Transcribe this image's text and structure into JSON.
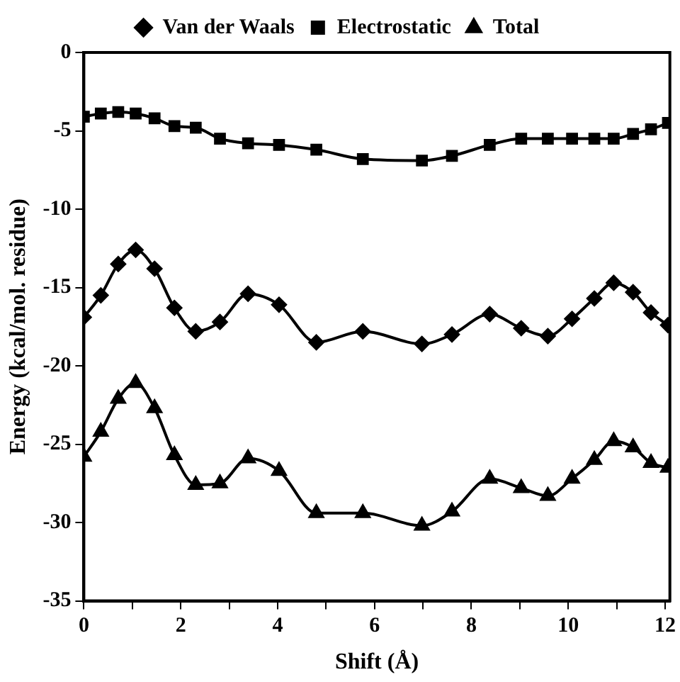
{
  "chart_data": {
    "type": "line",
    "xlabel": "Shift (Å)",
    "ylabel": "Energy (kcal/mol. residue)",
    "x": [
      0,
      0.35,
      0.71,
      1.07,
      1.46,
      1.87,
      2.31,
      2.81,
      3.39,
      4.03,
      4.8,
      5.76,
      6.98,
      7.6,
      8.38,
      9.03,
      9.58,
      10.08,
      10.54,
      10.94,
      11.34,
      11.71,
      12.06
    ],
    "series": [
      {
        "name": "Van der Waals",
        "color": "#000000",
        "marker": "diamond",
        "values": [
          -16.9,
          -15.5,
          -13.5,
          -12.6,
          -13.8,
          -16.3,
          -17.8,
          -17.2,
          -15.4,
          -16.1,
          -18.5,
          -17.8,
          -18.6,
          -18.0,
          -16.7,
          -17.6,
          -18.1,
          -17.0,
          -15.7,
          -14.7,
          -15.3,
          -16.6,
          -17.4
        ]
      },
      {
        "name": "Electrostatic",
        "color": "#000000",
        "marker": "square",
        "values": [
          -4.1,
          -3.9,
          -3.8,
          -3.9,
          -4.2,
          -4.7,
          -4.8,
          -5.5,
          -5.8,
          -5.9,
          -6.2,
          -6.8,
          -6.9,
          -6.6,
          -5.9,
          -5.5,
          -5.5,
          -5.5,
          -5.5,
          -5.5,
          -5.2,
          -4.9,
          -4.5
        ]
      },
      {
        "name": "Total",
        "color": "#000000",
        "marker": "triangle",
        "values": [
          -25.8,
          -24.2,
          -22.1,
          -21.1,
          -22.7,
          -25.7,
          -27.6,
          -27.5,
          -25.9,
          -26.7,
          -29.4,
          -29.4,
          -30.2,
          -29.3,
          -27.2,
          -27.8,
          -28.3,
          -27.2,
          -26.0,
          -24.8,
          -25.2,
          -26.2,
          -26.5
        ]
      }
    ],
    "xlim": [
      0,
      12.1
    ],
    "xticks": [
      0,
      {
        "value": 1,
        "label": null
      },
      2,
      {
        "value": 3,
        "label": null
      },
      4,
      {
        "value": 5,
        "label": null
      },
      6,
      {
        "value": 7,
        "label": null
      },
      8,
      {
        "value": 9,
        "label": null
      },
      10,
      {
        "value": 11,
        "label": null
      },
      12
    ],
    "ylim": [
      -35,
      0
    ],
    "yticks": [
      -35,
      -30,
      -25,
      -20,
      -15,
      -10,
      -5,
      0
    ],
    "grid": false,
    "legend": "top",
    "line_style": "solid"
  }
}
